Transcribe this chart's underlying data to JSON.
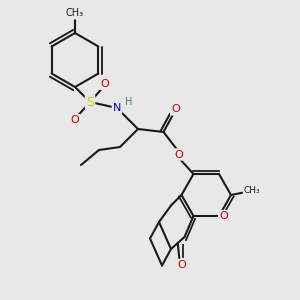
{
  "bg_color": "#e8e8e8",
  "bond_color": "#1a1a1a",
  "line_width": 1.5,
  "font_size": 8,
  "colors": {
    "O": "#cc0000",
    "N": "#0000cc",
    "S": "#cccc00",
    "C": "#1a1a1a",
    "H": "#408080"
  }
}
